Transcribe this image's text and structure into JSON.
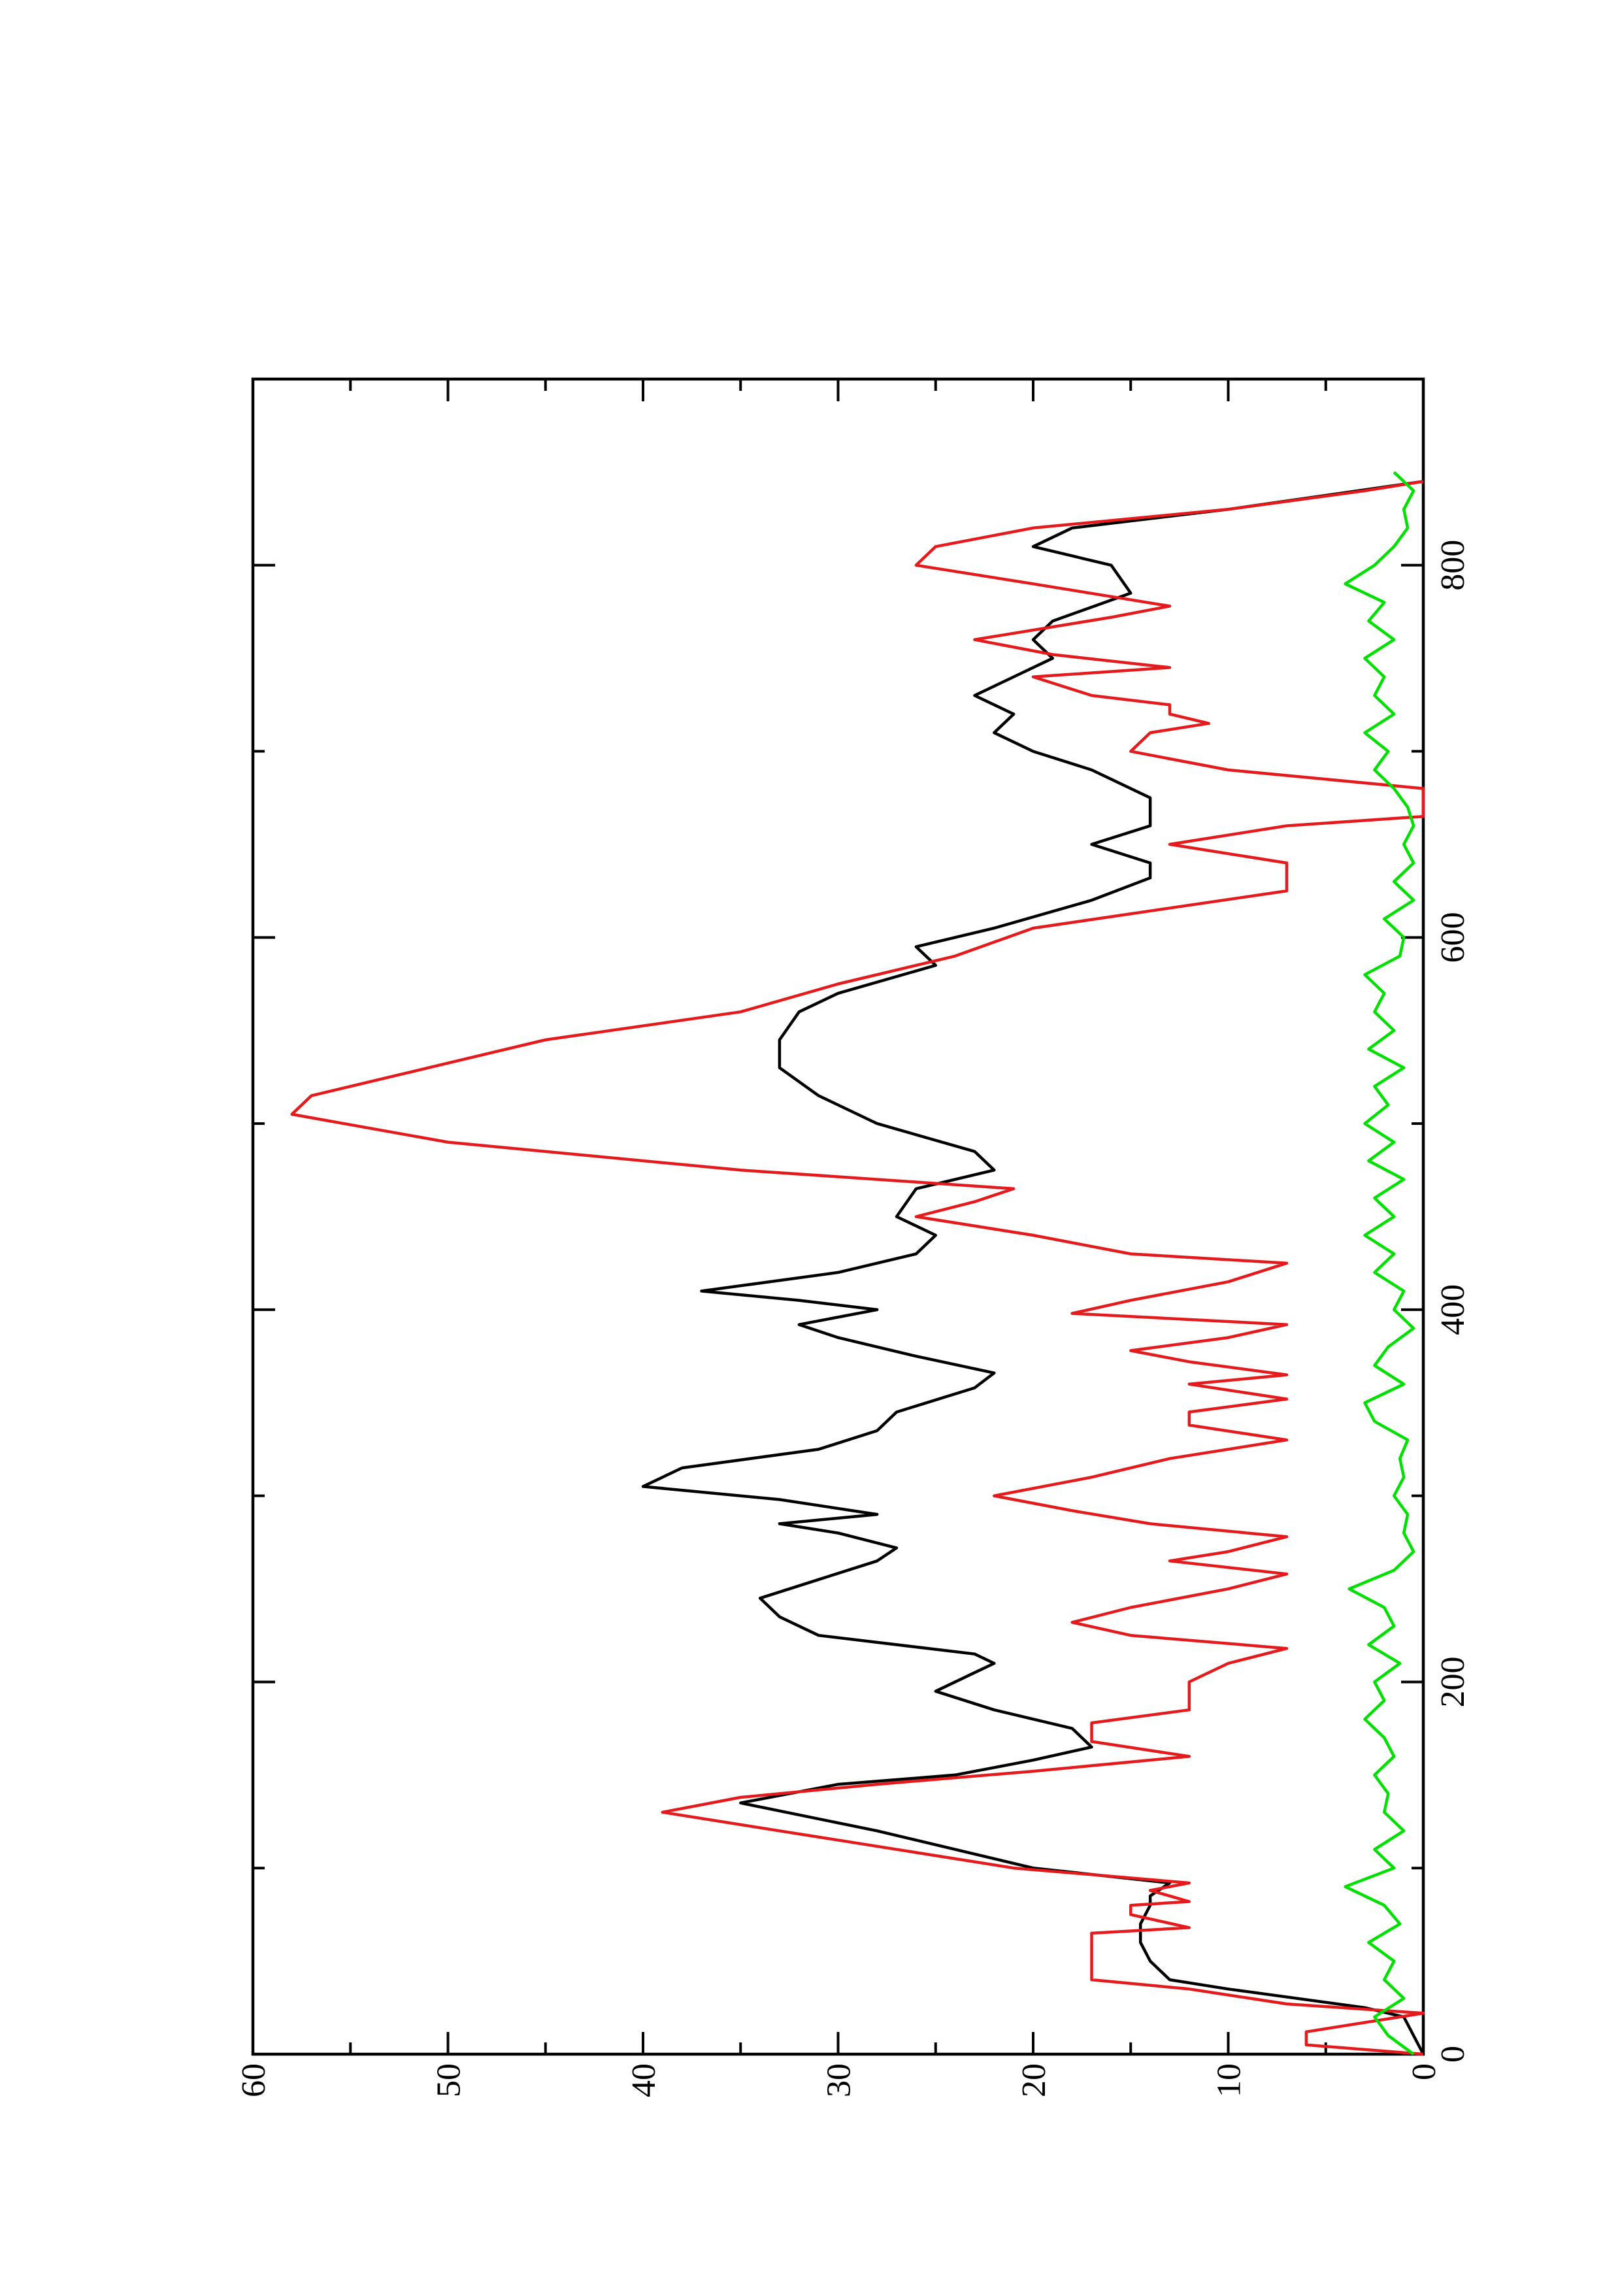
{
  "chart_data": {
    "type": "line",
    "xlim": [
      0,
      900
    ],
    "xticks": [
      0,
      200,
      400,
      600,
      800
    ],
    "xminor": [
      100,
      300,
      500,
      700
    ],
    "ylim": [
      0,
      60
    ],
    "yticks": [
      0,
      10,
      20,
      30,
      40,
      50,
      60
    ],
    "yminor": [
      5,
      15,
      25,
      35,
      45,
      55
    ],
    "series": [
      {
        "color": "#000000",
        "x": [
          0,
          10,
          20,
          25,
          35,
          40,
          50,
          60,
          70,
          80,
          85,
          92,
          100,
          110,
          120,
          135,
          145,
          150,
          158,
          165,
          175,
          185,
          195,
          205,
          210,
          215,
          225,
          235,
          245,
          255,
          265,
          272,
          280,
          285,
          290,
          298,
          305,
          315,
          325,
          335,
          345,
          358,
          366,
          375,
          385,
          392,
          400,
          405,
          410,
          420,
          430,
          440,
          450,
          465,
          475,
          485,
          500,
          515,
          530,
          545,
          560,
          570,
          585,
          595,
          605,
          620,
          632,
          640,
          650,
          660,
          675,
          690,
          700,
          710,
          720,
          730,
          740,
          750,
          760,
          770,
          785,
          800,
          810,
          820,
          830,
          845
        ],
        "values": [
          0,
          0.5,
          1,
          3,
          10,
          13,
          14,
          14.5,
          14.5,
          14,
          14,
          13,
          20,
          24,
          28,
          35,
          30,
          24,
          20,
          17,
          18,
          22,
          25,
          23,
          22,
          23,
          31,
          33,
          34,
          31,
          28,
          27,
          30,
          33,
          28,
          33,
          40,
          38,
          31,
          28,
          27,
          23,
          22,
          26,
          30,
          32,
          28,
          32,
          37,
          30,
          26,
          25,
          27,
          26,
          22,
          23,
          28,
          31,
          33,
          33,
          32,
          30,
          25,
          26,
          22,
          17,
          14,
          14,
          17,
          14,
          14,
          17,
          20,
          22,
          21,
          23,
          21,
          19,
          20,
          19,
          15,
          16,
          20,
          18,
          10,
          0
        ]
      },
      {
        "color": "#e41a1c",
        "x": [
          0,
          5,
          12,
          22,
          27,
          35,
          40,
          65,
          68,
          75,
          80,
          82,
          88,
          92,
          100,
          110,
          120,
          130,
          138,
          145,
          152,
          160,
          168,
          178,
          185,
          200,
          210,
          218,
          225,
          232,
          240,
          250,
          258,
          265,
          270,
          278,
          285,
          292,
          300,
          310,
          320,
          330,
          338,
          345,
          352,
          360,
          365,
          372,
          378,
          385,
          392,
          398,
          405,
          415,
          425,
          430,
          440,
          450,
          458,
          465,
          475,
          490,
          505,
          515,
          530,
          545,
          560,
          575,
          590,
          605,
          625,
          640,
          650,
          660,
          665,
          680,
          690,
          700,
          710,
          715,
          720,
          725,
          730,
          740,
          745,
          752,
          760,
          772,
          778,
          790,
          800,
          810,
          820,
          830,
          840,
          845
        ],
        "values": [
          0,
          6,
          6,
          0,
          7,
          12,
          17,
          17,
          12,
          15,
          15,
          12,
          14,
          12,
          21,
          27,
          33,
          39,
          35,
          28,
          20,
          12,
          17,
          17,
          12,
          12,
          10,
          7,
          15,
          18,
          15,
          10,
          7,
          13,
          10,
          7,
          14,
          18,
          22,
          17,
          13,
          7,
          12,
          12,
          7,
          12,
          7,
          12,
          15,
          10,
          7,
          18,
          15,
          10,
          7,
          15,
          20,
          26,
          23,
          21,
          35,
          50,
          58,
          57,
          51,
          45,
          35,
          30,
          24,
          20,
          7,
          7,
          13,
          7,
          0,
          0,
          10,
          15,
          14,
          11,
          13,
          13,
          17,
          20,
          13,
          19,
          23,
          16,
          13,
          20,
          26,
          25,
          20,
          10,
          3,
          0
        ]
      },
      {
        "color": "#00e000",
        "x": [
          0,
          10,
          20,
          30,
          40,
          50,
          60,
          70,
          80,
          90,
          100,
          110,
          120,
          130,
          140,
          150,
          160,
          170,
          180,
          190,
          200,
          210,
          220,
          230,
          240,
          250,
          260,
          270,
          280,
          290,
          300,
          310,
          320,
          330,
          340,
          350,
          360,
          370,
          380,
          390,
          400,
          410,
          420,
          430,
          440,
          450,
          460,
          470,
          480,
          490,
          500,
          510,
          520,
          530,
          540,
          550,
          560,
          570,
          580,
          590,
          600,
          610,
          620,
          630,
          640,
          650,
          660,
          670,
          680,
          690,
          700,
          710,
          720,
          730,
          740,
          750,
          760,
          770,
          780,
          790,
          800,
          810,
          820,
          830,
          840,
          850
        ],
        "values": [
          0.5,
          1.8,
          2.5,
          1,
          2,
          1.5,
          2.8,
          1.2,
          2,
          4,
          1.5,
          2.5,
          1,
          2,
          1.8,
          2.5,
          1.5,
          2,
          3,
          2,
          2.5,
          1.2,
          2.8,
          1.5,
          2,
          3.8,
          1.5,
          0.5,
          1,
          0.8,
          1.5,
          1,
          1.2,
          0.8,
          2.5,
          3,
          1,
          2.5,
          1.8,
          0.5,
          1.5,
          1,
          2.5,
          1.5,
          3,
          1.5,
          2.5,
          1,
          2.8,
          1.5,
          3,
          1.8,
          2.5,
          1,
          2.8,
          1.5,
          2.5,
          2,
          3,
          1.2,
          1,
          2,
          0.5,
          1.5,
          0.5,
          1,
          0.5,
          0.8,
          1.5,
          2.5,
          1.8,
          3,
          1.5,
          2.5,
          2,
          3,
          1.5,
          2.8,
          2,
          4,
          2.5,
          1.5,
          0.8,
          1,
          0.5,
          1.5
        ]
      }
    ]
  }
}
